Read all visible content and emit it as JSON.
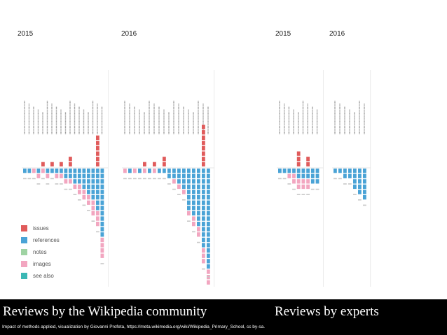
{
  "chart_data": {
    "type": "bar",
    "title": "Impact of methods applied",
    "panels": [
      {
        "name": "Wikipedia community 2015",
        "year_label": "2015",
        "columns": [
          {
            "i": [
              0,
              0
            ],
            "r": [
              1,
              0
            ]
          },
          {
            "i": [
              0,
              0
            ],
            "r": [
              1,
              0
            ]
          },
          {
            "i": [
              0,
              0
            ],
            "r": [
              0,
              1
            ]
          },
          {
            "i": [
              0,
              0
            ],
            "r": [
              1,
              1
            ]
          },
          {
            "i": [
              1,
              0
            ],
            "r": [
              0,
              1
            ]
          },
          {
            "i": [
              0,
              0
            ],
            "r": [
              1,
              1
            ]
          },
          {
            "i": [
              1,
              0
            ],
            "r": [
              1,
              0
            ]
          },
          {
            "i": [
              0,
              0
            ],
            "r": [
              1,
              1
            ]
          },
          {
            "i": [
              1,
              0
            ],
            "r": [
              1,
              1
            ]
          },
          {
            "i": [
              0,
              0
            ],
            "r": [
              2,
              1
            ]
          },
          {
            "i": [
              2,
              0
            ],
            "r": [
              2,
              1
            ]
          },
          {
            "i": [
              0,
              0
            ],
            "r": [
              3,
              1
            ]
          },
          {
            "i": [
              0,
              0
            ],
            "r": [
              3,
              2
            ]
          },
          {
            "i": [
              0,
              0
            ],
            "r": [
              4,
              2
            ]
          },
          {
            "i": [
              0,
              0
            ],
            "r": [
              5,
              2
            ]
          },
          {
            "i": [
              0,
              0
            ],
            "r": [
              6,
              3
            ]
          },
          {
            "i": [
              6,
              0
            ],
            "r": [
              8,
              3
            ]
          },
          {
            "i": [
              0,
              0
            ],
            "r": [
              13,
              4
            ]
          }
        ]
      },
      {
        "name": "Wikipedia community 2016",
        "year_label": "2016",
        "columns": [
          {
            "i": [
              0,
              0
            ],
            "r": [
              0,
              1
            ]
          },
          {
            "i": [
              0,
              0
            ],
            "r": [
              1,
              0
            ]
          },
          {
            "i": [
              0,
              0
            ],
            "r": [
              0,
              1
            ]
          },
          {
            "i": [
              0,
              0
            ],
            "r": [
              1,
              0
            ]
          },
          {
            "i": [
              1,
              0
            ],
            "r": [
              0,
              1
            ]
          },
          {
            "i": [
              0,
              0
            ],
            "r": [
              1,
              0
            ]
          },
          {
            "i": [
              1,
              0
            ],
            "r": [
              0,
              1
            ]
          },
          {
            "i": [
              0,
              0
            ],
            "r": [
              1,
              0
            ]
          },
          {
            "i": [
              2,
              0
            ],
            "r": [
              1,
              0
            ]
          },
          {
            "i": [
              0,
              0
            ],
            "r": [
              2,
              0
            ]
          },
          {
            "i": [
              0,
              0
            ],
            "r": [
              2,
              1
            ]
          },
          {
            "i": [
              0,
              0
            ],
            "r": [
              3,
              1
            ]
          },
          {
            "i": [
              0,
              0
            ],
            "r": [
              4,
              1
            ]
          },
          {
            "i": [
              0,
              0
            ],
            "r": [
              8,
              1
            ]
          },
          {
            "i": [
              0,
              0
            ],
            "r": [
              9,
              2
            ]
          },
          {
            "i": [
              0,
              0
            ],
            "r": [
              11,
              2
            ]
          },
          {
            "i": [
              8,
              0
            ],
            "r": [
              15,
              3
            ]
          },
          {
            "i": [
              0,
              0
            ],
            "r": [
              19,
              3
            ]
          }
        ]
      },
      {
        "name": "Experts 2015",
        "year_label": "2015",
        "columns": [
          {
            "i": [
              0,
              0
            ],
            "r": [
              1,
              0
            ]
          },
          {
            "i": [
              0,
              0
            ],
            "r": [
              1,
              0
            ]
          },
          {
            "i": [
              0,
              0
            ],
            "r": [
              1,
              1
            ]
          },
          {
            "i": [
              0,
              0
            ],
            "r": [
              1,
              2
            ]
          },
          {
            "i": [
              3,
              0
            ],
            "r": [
              2,
              2
            ]
          },
          {
            "i": [
              0,
              0
            ],
            "r": [
              2,
              2
            ]
          },
          {
            "i": [
              2,
              0
            ],
            "r": [
              2,
              2
            ]
          },
          {
            "i": [
              0,
              0
            ],
            "r": [
              3,
              0
            ]
          },
          {
            "i": [
              0,
              0
            ],
            "r": [
              3,
              0
            ]
          }
        ]
      },
      {
        "name": "Experts 2016",
        "year_label": "2016",
        "columns": [
          {
            "i": [
              0,
              0
            ],
            "r": [
              1,
              0
            ]
          },
          {
            "i": [
              0,
              0
            ],
            "r": [
              1,
              0
            ]
          },
          {
            "i": [
              0,
              0
            ],
            "r": [
              2,
              0
            ]
          },
          {
            "i": [
              0,
              0
            ],
            "r": [
              2,
              0
            ]
          },
          {
            "i": [
              0,
              0
            ],
            "r": [
              4,
              0
            ]
          },
          {
            "i": [
              0,
              0
            ],
            "r": [
              5,
              0
            ]
          },
          {
            "i": [
              0,
              0
            ],
            "r": [
              6,
              0
            ]
          }
        ]
      }
    ],
    "legend": [
      {
        "label": "issues",
        "color": "#e05b5b"
      },
      {
        "label": "references",
        "color": "#4aa3d6"
      },
      {
        "label": "notes",
        "color": "#9fd3a3"
      },
      {
        "label": "images",
        "color": "#f2a6c0"
      },
      {
        "label": "see also",
        "color": "#3bb8b5"
      }
    ]
  },
  "captions": {
    "community": "Reviews by the Wikipedia community",
    "experts": "Reviews by experts",
    "credit": "Impact of methods applied, visualization by Giovanni Profeta, https://meta.wikimedia.org/wiki/Wikipedia_Primary_School, cc by-sa."
  }
}
